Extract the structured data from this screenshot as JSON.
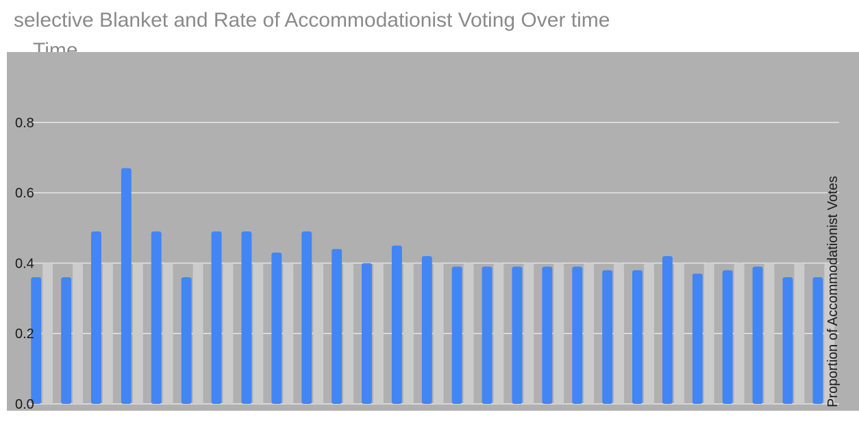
{
  "title": {
    "line1": "selective Blanket and Rate of Accommodationist Voting Over time",
    "line2": "Time"
  },
  "chart_data": {
    "type": "bar",
    "title": "selective Blanket and Rate of Accommodationist Voting Over time",
    "ylabel": "Proportion of Accommodationist Votes",
    "xlabel": "",
    "ylim": [
      0,
      1.0
    ],
    "yticks": [
      0.0,
      0.2,
      0.4,
      0.6,
      0.8
    ],
    "grid": true,
    "series": [
      {
        "values": [
          0.36,
          0.36,
          0.49,
          0.67,
          0.49,
          0.36,
          0.49,
          0.49,
          0.43,
          0.49,
          0.44,
          0.4,
          0.45,
          0.42,
          0.39,
          0.39,
          0.39,
          0.39,
          0.39,
          0.38,
          0.38,
          0.42,
          0.37,
          0.38,
          0.39,
          0.36,
          0.36
        ]
      },
      {
        "values": [
          0.4,
          0.4,
          0.4,
          0.4,
          0.4,
          0.4,
          0.4,
          0.4,
          0.4,
          0.4,
          0.4,
          0.4,
          0.4,
          0.4,
          0.4,
          0.4,
          0.4,
          0.4,
          0.4,
          0.4,
          0.4,
          0.4,
          0.4,
          0.4,
          0.4,
          0.4,
          0.4
        ]
      }
    ],
    "colors": {
      "primary": "#4285f4",
      "secondary": "#cccccc",
      "plot_bg": "#b0b0b0",
      "grid": "#e6e6e6"
    }
  }
}
